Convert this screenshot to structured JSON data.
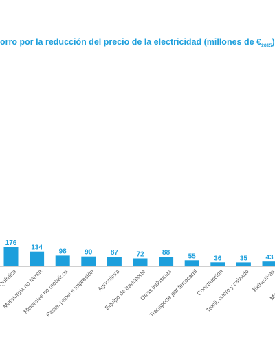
{
  "chart_data": {
    "type": "bar",
    "title_main": "orro por la reducción del precio de la electricidad (millones de €",
    "title_sub": "2015",
    "title_close": ")",
    "categories": [
      "Química",
      "Metalurgia no férrea",
      "Minerales no metálicos",
      "Pasta, papel e impresión",
      "Agricultura",
      "Equipo de transporte",
      "Otras industrias",
      "Transporte por ferrocarril",
      "Construcción",
      "Textil, cuero y calzado",
      "Extractivas",
      "Madera, corcho"
    ],
    "values": [
      176,
      134,
      98,
      90,
      87,
      72,
      88,
      55,
      36,
      35,
      43,
      0
    ],
    "value_labels": [
      "176",
      "134",
      "98",
      "90",
      "87",
      "72",
      "88",
      "55",
      "36",
      "35",
      "43",
      ""
    ],
    "bar_color": "#1d9fdc",
    "label_color": "#1d9fdc",
    "grid": false,
    "legend": "none"
  }
}
